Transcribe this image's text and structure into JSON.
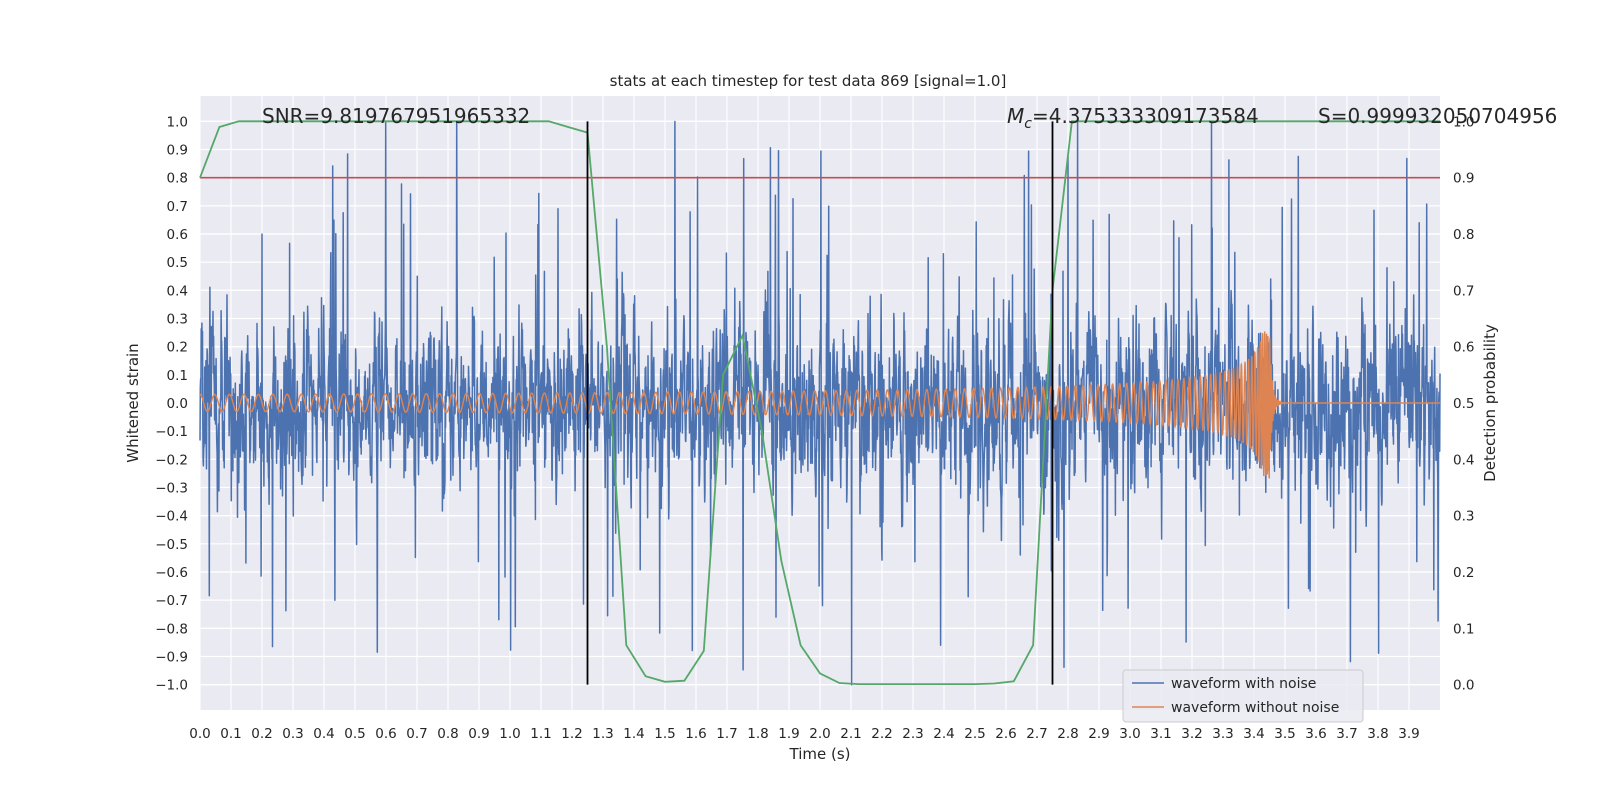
{
  "chart_data": {
    "type": "line",
    "title": "stats at each timestep for test data 869 [signal=1.0]",
    "xlabel": "Time (s)",
    "ylabel": "Whitened strain",
    "y2label": "Detection probability",
    "xlim": [
      0.0,
      4.0
    ],
    "ylim": [
      -1.09,
      1.09
    ],
    "y2lim": [
      -0.045,
      1.045
    ],
    "xticks": [
      "0.0",
      "0.1",
      "0.2",
      "0.3",
      "0.4",
      "0.5",
      "0.6",
      "0.7",
      "0.8",
      "0.9",
      "1.0",
      "1.1",
      "1.2",
      "1.3",
      "1.4",
      "1.5",
      "1.6",
      "1.7",
      "1.8",
      "1.9",
      "2.0",
      "2.1",
      "2.2",
      "2.3",
      "2.4",
      "2.5",
      "2.6",
      "2.7",
      "2.8",
      "2.9",
      "3.0",
      "3.1",
      "3.2",
      "3.3",
      "3.4",
      "3.5",
      "3.6",
      "3.7",
      "3.8",
      "3.9"
    ],
    "yticks": [
      "1.0",
      "0.9",
      "0.8",
      "0.7",
      "0.6",
      "0.5",
      "0.4",
      "0.3",
      "0.2",
      "0.1",
      "0.0",
      "-0.1",
      "-0.2",
      "-0.3",
      "-0.4",
      "-0.5",
      "-0.6",
      "-0.7",
      "-0.8",
      "-0.9",
      "-1.0"
    ],
    "y2ticks": [
      "1.0",
      "0.9",
      "0.8",
      "0.7",
      "0.6",
      "0.5",
      "0.4",
      "0.3",
      "0.2",
      "0.1",
      "0.0"
    ],
    "grid": true,
    "legend_position": "lower-right",
    "annotations": {
      "snr": "SNR=9.819767951965332",
      "mc_symbol": "M",
      "mc_sub": "c",
      "mc_value": "=4.375333309173584",
      "s_value": "S=0.999932050704956"
    },
    "series": [
      {
        "name": "waveform with noise",
        "axis": "left",
        "color": "#4c72b0",
        "description": "noisy whitened strain, roughly uniform amplitude about ±0.5 with spikes to ±1.0"
      },
      {
        "name": "waveform without noise",
        "axis": "left",
        "color": "#dd8452",
        "chirp": {
          "start_time": 0.0,
          "merger_time": 3.45,
          "start_amplitude": 0.03,
          "peak_amplitude": 0.26,
          "start_frequency_hz": 21
        }
      },
      {
        "name": "detection probability",
        "axis": "right",
        "color": "#55a868",
        "x": [
          0.0,
          0.0625,
          0.125,
          0.1875,
          0.25,
          0.3125,
          0.375,
          0.4375,
          0.5,
          0.5625,
          0.625,
          0.6875,
          0.75,
          0.8125,
          0.875,
          0.9375,
          1.0,
          1.0625,
          1.125,
          1.1875,
          1.25,
          1.3125,
          1.375,
          1.4375,
          1.5,
          1.5625,
          1.625,
          1.6875,
          1.75,
          1.8125,
          1.875,
          1.9375,
          2.0,
          2.0625,
          2.125,
          2.1875,
          2.25,
          2.3125,
          2.375,
          2.4375,
          2.5,
          2.5625,
          2.625,
          2.6875,
          2.75,
          2.8125,
          2.875,
          2.9375,
          3.0,
          3.0625,
          3.125,
          3.1875,
          3.25,
          3.3125,
          3.375,
          3.4375,
          3.5,
          3.5625,
          3.625,
          3.6875,
          3.75,
          3.8125,
          3.875,
          3.9375,
          4.0
        ],
        "values": [
          0.9,
          0.99,
          1.0,
          1.0,
          1.0,
          1.0,
          1.0,
          1.0,
          1.0,
          1.0,
          1.0,
          1.0,
          1.0,
          1.0,
          1.0,
          1.0,
          1.0,
          1.0,
          1.0,
          0.99,
          0.98,
          0.6,
          0.07,
          0.015,
          0.005,
          0.007,
          0.06,
          0.55,
          0.62,
          0.45,
          0.22,
          0.07,
          0.02,
          0.003,
          0.001,
          0.001,
          0.001,
          0.001,
          0.001,
          0.001,
          0.001,
          0.002,
          0.006,
          0.07,
          0.7,
          1.0,
          1.0,
          1.0,
          1.0,
          1.0,
          1.0,
          1.0,
          1.0,
          1.0,
          1.0,
          1.0,
          1.0,
          1.0,
          1.0,
          1.0,
          1.0,
          1.0,
          1.0,
          1.0,
          1.0
        ]
      },
      {
        "name": "threshold",
        "axis": "right",
        "color": "#c44e52",
        "value": 0.9
      }
    ],
    "vertical_lines": [
      1.25,
      2.75
    ]
  }
}
